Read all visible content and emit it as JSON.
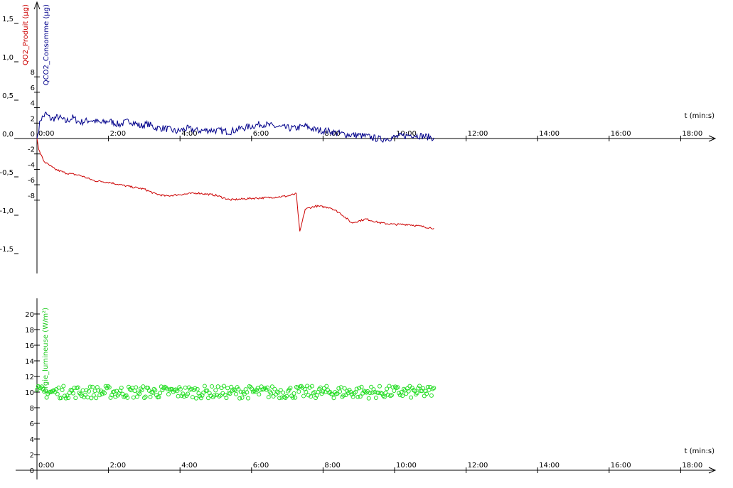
{
  "chart_data": [
    {
      "type": "line",
      "xlabel": "t (min:s)",
      "x_ticks": [
        "0:00",
        "2:00",
        "4:00",
        "6:00",
        "8:00",
        "10:00",
        "12:00",
        "14:00",
        "16:00",
        "18:00"
      ],
      "xlim": [
        0,
        18
      ],
      "grid": false,
      "left_axis": {
        "label": "QO2_Produit (µg)",
        "color": "#cc0000",
        "ylim": [
          -1.5,
          1.5
        ],
        "ticks": [
          "1,5",
          "1,0",
          "0,5",
          "0,0",
          "-0,5",
          "-1,0",
          "-1,5"
        ]
      },
      "right_axis": {
        "label": "QCO2_Consomme (µg)",
        "color": "#00008b",
        "ylim": [
          -8,
          8
        ],
        "ticks": [
          "8",
          "6",
          "4",
          "2",
          "0",
          "-2",
          "-4",
          "-6",
          "-8"
        ]
      },
      "series": [
        {
          "name": "QCO2_Consomme (µg)",
          "axis": "right",
          "color": "#00008b",
          "points": [
            [
              0,
              0
            ],
            [
              0.1,
              2.5
            ],
            [
              0.25,
              3.2
            ],
            [
              0.4,
              2.5
            ],
            [
              0.6,
              2.8
            ],
            [
              0.8,
              2.2
            ],
            [
              1.0,
              2.7
            ],
            [
              1.2,
              2.1
            ],
            [
              1.5,
              2.4
            ],
            [
              1.8,
              2.0
            ],
            [
              2.0,
              2.3
            ],
            [
              2.3,
              1.8
            ],
            [
              2.6,
              2.3
            ],
            [
              2.9,
              1.6
            ],
            [
              3.1,
              1.9
            ],
            [
              3.3,
              1.4
            ],
            [
              3.6,
              1.3
            ],
            [
              3.9,
              0.9
            ],
            [
              4.2,
              1.3
            ],
            [
              4.5,
              1.0
            ],
            [
              4.8,
              1.1
            ],
            [
              5.1,
              1.0
            ],
            [
              5.4,
              0.9
            ],
            [
              5.7,
              1.3
            ],
            [
              6.0,
              1.6
            ],
            [
              6.3,
              1.9
            ],
            [
              6.6,
              1.6
            ],
            [
              6.9,
              1.4
            ],
            [
              7.2,
              1.3
            ],
            [
              7.5,
              1.6
            ],
            [
              7.8,
              1.1
            ],
            [
              8.1,
              1.0
            ],
            [
              8.4,
              0.7
            ],
            [
              8.7,
              0.5
            ],
            [
              9.0,
              0.4
            ],
            [
              9.3,
              0.2
            ],
            [
              9.6,
              -0.1
            ],
            [
              9.9,
              0.1
            ],
            [
              10.2,
              0.3
            ],
            [
              10.5,
              0.5
            ],
            [
              10.8,
              0.3
            ],
            [
              11.1,
              0.1
            ]
          ]
        },
        {
          "name": "QO2_Produit (µg)",
          "axis": "left",
          "color": "#cc0000",
          "points": [
            [
              0,
              0
            ],
            [
              0.05,
              -0.15
            ],
            [
              0.2,
              -0.3
            ],
            [
              0.5,
              -0.4
            ],
            [
              0.8,
              -0.45
            ],
            [
              1.2,
              -0.48
            ],
            [
              1.6,
              -0.55
            ],
            [
              2.0,
              -0.57
            ],
            [
              2.5,
              -0.62
            ],
            [
              3.0,
              -0.66
            ],
            [
              3.3,
              -0.72
            ],
            [
              3.6,
              -0.75
            ],
            [
              4.0,
              -0.73
            ],
            [
              4.5,
              -0.71
            ],
            [
              5.0,
              -0.74
            ],
            [
              5.4,
              -0.8
            ],
            [
              6.0,
              -0.78
            ],
            [
              6.5,
              -0.77
            ],
            [
              7.0,
              -0.75
            ],
            [
              7.25,
              -0.72
            ],
            [
              7.35,
              -1.22
            ],
            [
              7.5,
              -0.92
            ],
            [
              7.8,
              -0.88
            ],
            [
              8.2,
              -0.9
            ],
            [
              8.5,
              -0.98
            ],
            [
              8.8,
              -1.1
            ],
            [
              9.2,
              -1.05
            ],
            [
              9.6,
              -1.1
            ],
            [
              10.0,
              -1.12
            ],
            [
              10.4,
              -1.12
            ],
            [
              10.8,
              -1.15
            ],
            [
              11.1,
              -1.17
            ]
          ]
        }
      ]
    },
    {
      "type": "scatter",
      "xlabel": "t (min:s)",
      "x_ticks": [
        "0:00",
        "2:00",
        "4:00",
        "6:00",
        "8:00",
        "10:00",
        "12:00",
        "14:00",
        "16:00",
        "18:00"
      ],
      "xlim": [
        0,
        18
      ],
      "grid": false,
      "ylabel": "Énergie_lumineuse (W/m²)",
      "ylabel_visible": "ergie_lumineuse (W/m²)",
      "ylim": [
        0,
        20
      ],
      "y_ticks": [
        "20",
        "18",
        "16",
        "14",
        "12",
        "10",
        "8",
        "6",
        "4",
        "2",
        "0"
      ],
      "series": [
        {
          "name": "Énergie_lumineuse (W/m²)",
          "color": "#22dd22",
          "marker": "open-circle",
          "baseline": 10,
          "spread": 0.8,
          "x_range": [
            0,
            11.1
          ],
          "count": 330
        }
      ]
    }
  ]
}
